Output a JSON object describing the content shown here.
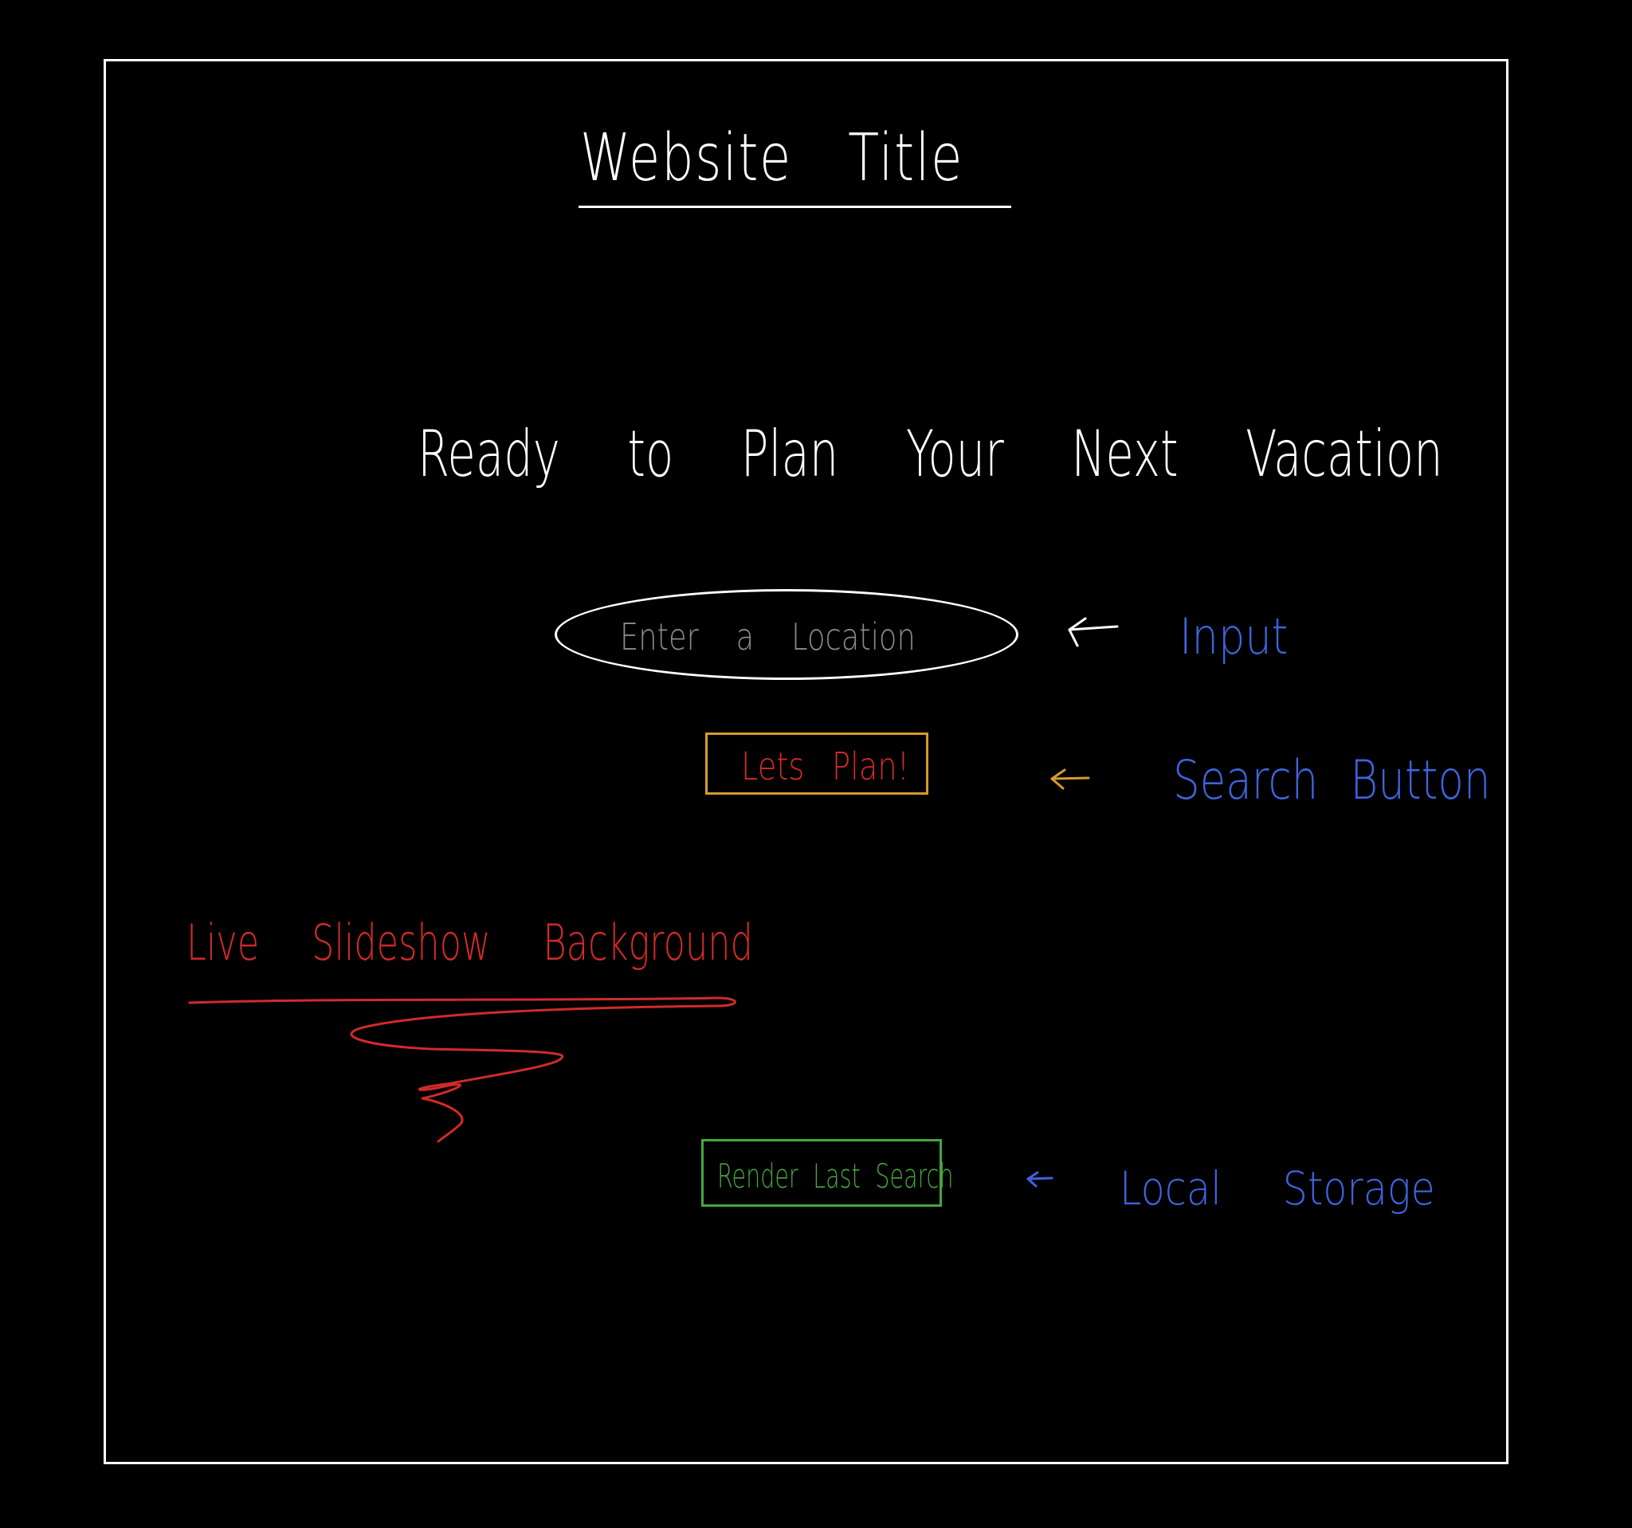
{
  "colors": {
    "background": "#000000",
    "sketch_white": "#ffffff",
    "placeholder_gray": "#8a8a8a",
    "button_border_orange": "#d69a2e",
    "annotation_red": "#d22a2a",
    "annotation_blue": "#3e63dd",
    "render_green": "#46a63e"
  },
  "header": {
    "title": "Website Title"
  },
  "hero": {
    "headline": "Ready to Plan Your Next Vacation"
  },
  "search": {
    "placeholder": "Enter a Location",
    "button_label": "Lets Plan!"
  },
  "history": {
    "button_label": "Render Last Search"
  },
  "annotations": {
    "input": "Input",
    "search_button": "Search Button",
    "local_storage": "Local Storage",
    "background": "Live Slideshow Background"
  },
  "icons": {
    "input_arrow": "arrow-left-icon",
    "button_arrow": "arrow-left-icon",
    "storage_arrow": "arrow-left-icon"
  }
}
